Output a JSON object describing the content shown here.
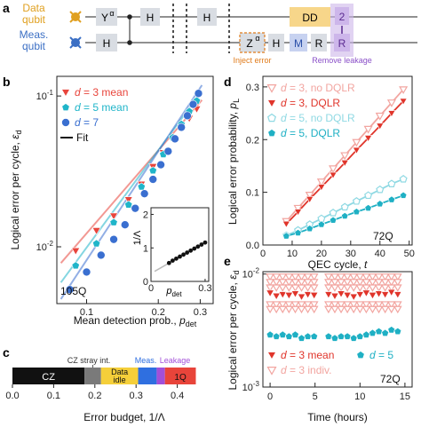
{
  "panel_labels": {
    "a": "a",
    "b": "b",
    "c": "c",
    "d": "d",
    "e": "e"
  },
  "circuit": {
    "data_qubit": [
      "Data",
      "qubit"
    ],
    "meas_qubit": [
      "Meas.",
      "qubit"
    ],
    "gates_top": [
      "Y",
      "H",
      "H",
      "DD",
      "2"
    ],
    "gates_bottom": [
      "H",
      "Z",
      "H",
      "M",
      "R",
      "R"
    ],
    "alpha": "α",
    "inject_label": "Inject error",
    "remove_label": "Remove leakage",
    "colors": {
      "data": "#e0a020",
      "meas": "#3b6fc4",
      "gate": "#d9dde3",
      "dd": "#f7d68a",
      "purple": "#cdb6ea",
      "inject": "#e07b1b"
    }
  },
  "chart_data": [
    {
      "panel": "b",
      "type": "scatter",
      "xlabel": "Mean detection prob., ",
      "xlabel_var": "p",
      "xlabel_sub": "det",
      "ylabel": "Logical error per cycle, ",
      "ylabel_var": "ε",
      "ylabel_sub": "d",
      "log_x": true,
      "log_y": true,
      "xlim": [
        0.075,
        0.34
      ],
      "ylim": [
        0.0042,
        0.135
      ],
      "x_ticks": [
        {
          "v": 0.1,
          "label": "0.1"
        },
        {
          "v": 0.2,
          "label": "0.2"
        },
        {
          "v": 0.3,
          "label": "0.3"
        }
      ],
      "y_ticks": [
        {
          "v": 0.01,
          "label": "10",
          "exp": "-2"
        },
        {
          "v": 0.1,
          "label": "10",
          "exp": "-1"
        }
      ],
      "legend": {
        "position": "top-left",
        "fit_label": "Fit",
        "eq": " = "
      },
      "annotation": "105Q",
      "series": [
        {
          "name": "3 mean",
          "var": "d",
          "color": "#e8453c",
          "marker": "triangle",
          "x": [
            0.09,
            0.11,
            0.13,
            0.15,
            0.17,
            0.19,
            0.21,
            0.23,
            0.25,
            0.27,
            0.29
          ],
          "y": [
            0.0094,
            0.0128,
            0.016,
            0.0205,
            0.026,
            0.034,
            0.042,
            0.052,
            0.062,
            0.071,
            0.082
          ],
          "fit": [
            [
              0.078,
              0.0078
            ],
            [
              0.305,
              0.094
            ]
          ]
        },
        {
          "name": "5 mean",
          "var": "d",
          "color": "#20b5c9",
          "marker": "pentagon",
          "x": [
            0.09,
            0.11,
            0.13,
            0.15,
            0.17,
            0.19,
            0.21,
            0.23,
            0.25,
            0.27,
            0.29
          ],
          "y": [
            0.0075,
            0.0105,
            0.0145,
            0.019,
            0.025,
            0.032,
            0.041,
            0.053,
            0.065,
            0.079,
            0.093
          ],
          "fit": [
            [
              0.078,
              0.0058
            ],
            [
              0.305,
              0.108
            ]
          ]
        },
        {
          "name": "7",
          "var": "d",
          "color": "#3a6fd0",
          "marker": "circle",
          "x": [
            0.085,
            0.1,
            0.115,
            0.13,
            0.145,
            0.16,
            0.175,
            0.19,
            0.205,
            0.22,
            0.235,
            0.25,
            0.265,
            0.28,
            0.295
          ],
          "y": [
            0.0052,
            0.0068,
            0.0088,
            0.0112,
            0.014,
            0.018,
            0.0225,
            0.028,
            0.035,
            0.043,
            0.052,
            0.062,
            0.074,
            0.088,
            0.104
          ],
          "fit": [
            [
              0.078,
              0.0045
            ],
            [
              0.305,
              0.118
            ]
          ]
        }
      ],
      "inset": {
        "xlabel_var": "p",
        "xlabel_sub": "det",
        "ylabel": "1/Λ",
        "xlim": [
          0,
          0.32
        ],
        "ylim": [
          0,
          2.2
        ],
        "x_ticks": [
          {
            "v": 0,
            "label": "0"
          },
          {
            "v": 0.3,
            "label": "0.3"
          }
        ],
        "y_ticks": [
          {
            "v": 0,
            "label": "0"
          },
          {
            "v": 1,
            "label": "1"
          },
          {
            "v": 2,
            "label": "2"
          }
        ],
        "x": [
          0.1,
          0.12,
          0.14,
          0.16,
          0.18,
          0.2,
          0.22,
          0.24,
          0.26,
          0.28,
          0.3
        ],
        "y": [
          0.55,
          0.62,
          0.68,
          0.74,
          0.8,
          0.86,
          0.92,
          0.98,
          1.04,
          1.1,
          1.16
        ]
      }
    },
    {
      "panel": "d",
      "type": "line",
      "xlabel": "QEC cycle, ",
      "xlabel_var": "t",
      "ylabel": "Logical error probability, ",
      "ylabel_var": "p",
      "ylabel_sub": "L",
      "xlim": [
        0,
        51
      ],
      "ylim": [
        0,
        0.32
      ],
      "x_ticks": [
        {
          "v": 0,
          "label": "0"
        },
        {
          "v": 10,
          "label": "10"
        },
        {
          "v": 20,
          "label": "20"
        },
        {
          "v": 30,
          "label": "30"
        },
        {
          "v": 40,
          "label": "40"
        },
        {
          "v": 50,
          "label": "50"
        }
      ],
      "y_ticks": [
        {
          "v": 0,
          "label": "0.0"
        },
        {
          "v": 0.1,
          "label": "0.1"
        },
        {
          "v": 0.2,
          "label": "0.2"
        },
        {
          "v": 0.3,
          "label": "0.3"
        }
      ],
      "legend": {
        "position": "top-left",
        "eq": " = "
      },
      "annotation": "72Q",
      "series": [
        {
          "name": "3, no DQLR",
          "var": "d",
          "color": "#f2a5a0",
          "marker": "triangle-open",
          "x": [
            8,
            12,
            16,
            20,
            24,
            28,
            32,
            36,
            40,
            44,
            48
          ],
          "y": [
            0.045,
            0.07,
            0.095,
            0.12,
            0.145,
            0.17,
            0.195,
            0.22,
            0.245,
            0.27,
            0.295
          ]
        },
        {
          "name": "3, DQLR",
          "var": "d",
          "color": "#e0352b",
          "marker": "triangle",
          "x": [
            8,
            12,
            16,
            20,
            24,
            28,
            32,
            36,
            40,
            44,
            48
          ],
          "y": [
            0.04,
            0.063,
            0.087,
            0.11,
            0.133,
            0.156,
            0.18,
            0.203,
            0.226,
            0.25,
            0.273
          ]
        },
        {
          "name": "5, no DQLR",
          "var": "d",
          "color": "#8fd9e3",
          "marker": "pentagon-open",
          "x": [
            8,
            12,
            16,
            20,
            24,
            28,
            32,
            36,
            40,
            44,
            48
          ],
          "y": [
            0.018,
            0.028,
            0.039,
            0.05,
            0.061,
            0.072,
            0.083,
            0.094,
            0.105,
            0.116,
            0.125
          ]
        },
        {
          "name": "5, DQLR",
          "var": "d",
          "color": "#1fb0c4",
          "marker": "pentagon",
          "x": [
            8,
            12,
            16,
            20,
            24,
            28,
            32,
            36,
            40,
            44,
            48
          ],
          "y": [
            0.017,
            0.023,
            0.031,
            0.039,
            0.047,
            0.055,
            0.063,
            0.07,
            0.078,
            0.086,
            0.094
          ]
        }
      ]
    },
    {
      "panel": "e",
      "type": "scatter",
      "xlabel": "Time (hours)",
      "ylabel": "Logical error per cycle, ",
      "ylabel_var": "ε",
      "ylabel_sub": "d",
      "log_y": true,
      "xlim": [
        -0.8,
        15.8
      ],
      "ylim": [
        0.001,
        0.0105
      ],
      "x_ticks": [
        {
          "v": 0,
          "label": "0"
        },
        {
          "v": 5,
          "label": "5"
        },
        {
          "v": 10,
          "label": "10"
        },
        {
          "v": 15,
          "label": "15"
        }
      ],
      "y_ticks": [
        {
          "v": 0.001,
          "label": "10",
          "exp": "-3"
        },
        {
          "v": 0.01,
          "label": "10",
          "exp": "-2"
        }
      ],
      "legend": {
        "position": "bottom",
        "eq": " = "
      },
      "annotation": "72Q",
      "series": [
        {
          "name": "3 mean",
          "var": "d",
          "color": "#e0352b",
          "marker": "triangle",
          "x": [
            0,
            0.7,
            1.4,
            2.1,
            2.8,
            3.5,
            4.2,
            4.9,
            6.5,
            7.2,
            7.9,
            8.6,
            9.3,
            10,
            10.7,
            11.4,
            12.1,
            12.8,
            13.5,
            14.2
          ],
          "y": [
            0.0068,
            0.0064,
            0.0066,
            0.0065,
            0.0067,
            0.0063,
            0.0066,
            0.0065,
            0.0066,
            0.0064,
            0.0067,
            0.0065,
            0.0063,
            0.0066,
            0.0068,
            0.0065,
            0.0067,
            0.0066,
            0.0069,
            0.0066
          ]
        },
        {
          "name": "3 indiv.",
          "var": "d",
          "color": "#f2a5a0",
          "marker": "triangle-open",
          "x": [
            0,
            0.7,
            1.4,
            2.1,
            2.8,
            3.5,
            4.2,
            4.9,
            6.5,
            7.2,
            7.9,
            8.6,
            9.3,
            10,
            10.7,
            11.4,
            12.1,
            12.8,
            13.5,
            14.2
          ],
          "spread": [
            0.0095,
            0.0085,
            0.0076,
            0.0054,
            0.0049
          ]
        },
        {
          "name": "5",
          "var": "d",
          "color": "#1fb0c4",
          "marker": "pentagon",
          "x": [
            0,
            0.7,
            1.4,
            2.1,
            2.8,
            3.5,
            4.2,
            4.9,
            6.5,
            7.2,
            7.9,
            8.6,
            9.3,
            10,
            10.7,
            11.4,
            12.1,
            12.8,
            13.5,
            14.2
          ],
          "y": [
            0.0029,
            0.0028,
            0.0029,
            0.0028,
            0.0029,
            0.0027,
            0.0028,
            0.0028,
            0.0028,
            0.0027,
            0.0028,
            0.0028,
            0.0027,
            0.0028,
            0.0029,
            0.003,
            0.0031,
            0.003,
            0.0032,
            0.0031
          ]
        }
      ]
    },
    {
      "panel": "c",
      "type": "bar",
      "xlabel": "Error budget, 1/Λ",
      "xlim": [
        0,
        0.5
      ],
      "x_ticks": [
        {
          "v": 0,
          "label": "0.0"
        },
        {
          "v": 0.1,
          "label": "0.1"
        },
        {
          "v": 0.2,
          "label": "0.2"
        },
        {
          "v": 0.3,
          "label": "0.3"
        },
        {
          "v": 0.4,
          "label": "0.4"
        }
      ],
      "segments": [
        {
          "name": "CZ",
          "start": 0,
          "end": 0.175,
          "color": "#111111",
          "text_color": "#ffffff"
        },
        {
          "name": "CZ stray int.",
          "start": 0.175,
          "end": 0.215,
          "color": "#7a7a7a",
          "text_color": "#333333"
        },
        {
          "name": "Data idle",
          "start": 0.215,
          "end": 0.305,
          "color": "#f5cf3a",
          "text_color": "#111111"
        },
        {
          "name": "Meas.",
          "start": 0.305,
          "end": 0.35,
          "color": "#2f6fe0",
          "text_color": "#2f6fe0"
        },
        {
          "name": "Leakage",
          "start": 0.35,
          "end": 0.37,
          "color": "#a24fd8",
          "text_color": "#a24fd8"
        },
        {
          "name": "1Q",
          "start": 0.37,
          "end": 0.445,
          "color": "#e8443a",
          "text_color": "#111111"
        }
      ]
    }
  ]
}
